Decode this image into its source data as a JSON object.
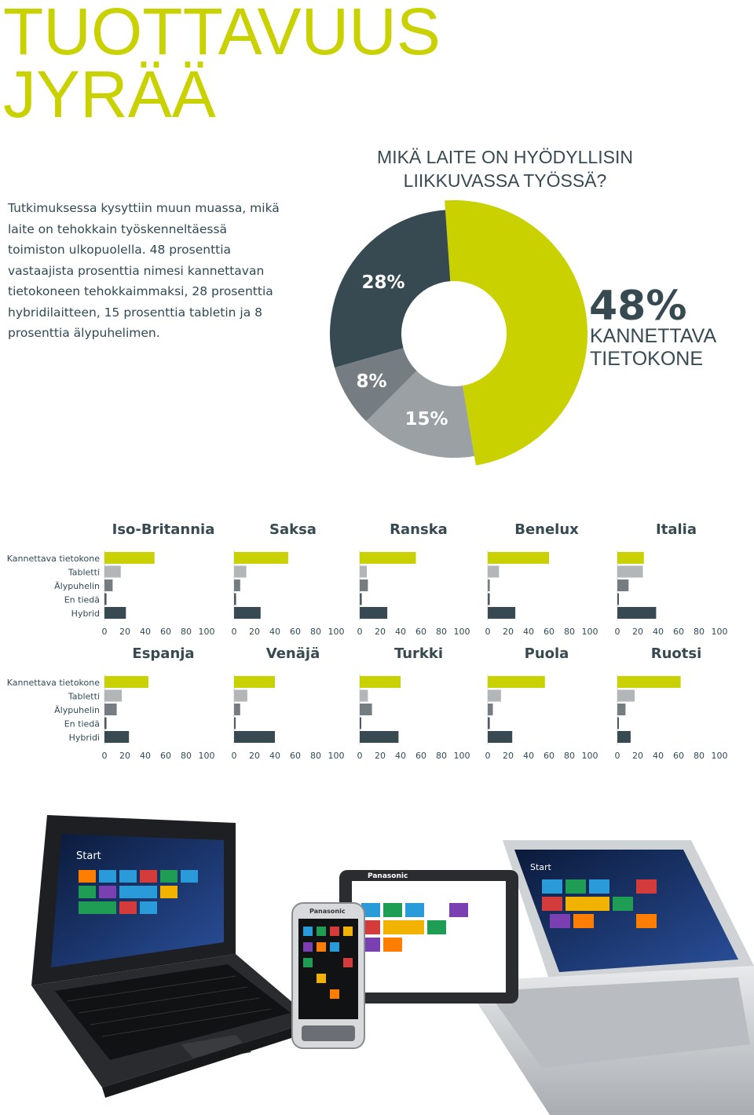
{
  "header": {
    "title_line1": "TUOTTAVUUS",
    "title_line2": "JYRÄÄ"
  },
  "intro_text": "Tutkimuksessa kysyttiin muun muassa, mikä laite on tehokkain työskenneltäessä toimiston ulkopuolella. 48 prosenttia vastaajista prosenttia nimesi kannettavan tietokoneen tehokkaimmaksi, 28 prosenttia hybridilaitteen, 15 prosenttia tabletin ja 8 prosenttia älypuhelimen.",
  "chart_data": [
    {
      "type": "pie",
      "title_line1": "MIKÄ LAITE ON HYÖDYLLISIN",
      "title_line2": "LIIKKUVASSA TYÖSSÄ?",
      "slices": [
        {
          "label": "KANNETTAVA TIETOKONE",
          "value": 48,
          "display": "48%",
          "color": "#c9d200"
        },
        {
          "label": "",
          "value": 15,
          "display": "15%",
          "color": "#9aa0a3"
        },
        {
          "label": "",
          "value": 8,
          "display": "8%",
          "color": "#767d82"
        },
        {
          "label": "",
          "value": 28,
          "display": "28%",
          "color": "#374a52"
        }
      ],
      "callout_value": "48%",
      "callout_label_line1": "KANNETTAVA",
      "callout_label_line2": "TIETOKONE"
    },
    {
      "type": "bar",
      "orientation": "horizontal",
      "xlim": [
        0,
        100
      ],
      "xticks": [
        "0",
        "20",
        "40",
        "60",
        "80",
        "100"
      ],
      "series_colors": [
        "#c9d200",
        "#b3b6b8",
        "#767d82",
        "#4f5a60",
        "#374a52"
      ],
      "rows": [
        {
          "categories": [
            "Kannettava tietokone",
            "Tabletti",
            "Älypuhelin",
            "En tiedä",
            "Hybrid"
          ],
          "panels": [
            {
              "name": "Iso-Britannia",
              "values": [
                49,
                16,
                8,
                2,
                21
              ]
            },
            {
              "name": "Saksa",
              "values": [
                53,
                12,
                6,
                2,
                26
              ]
            },
            {
              "name": "Ranska",
              "values": [
                55,
                7,
                8,
                2,
                27
              ]
            },
            {
              "name": "Benelux",
              "values": [
                60,
                11,
                2,
                2,
                27
              ]
            },
            {
              "name": "Italia",
              "values": [
                26,
                25,
                11,
                1,
                38
              ]
            }
          ]
        },
        {
          "categories": [
            "Kannettava tietokone",
            "Tabletti",
            "Älypuhelin",
            "En tiedä",
            "Hybridi"
          ],
          "panels": [
            {
              "name": "Espanja",
              "values": [
                43,
                17,
                12,
                2,
                24
              ]
            },
            {
              "name": "Venäjä",
              "values": [
                40,
                13,
                6,
                1,
                40
              ]
            },
            {
              "name": "Turkki",
              "values": [
                40,
                8,
                12,
                1,
                38
              ]
            },
            {
              "name": "Puola",
              "values": [
                56,
                13,
                5,
                2,
                24
              ]
            },
            {
              "name": "Ruotsi",
              "values": [
                62,
                17,
                8,
                1,
                13
              ]
            }
          ]
        }
      ]
    }
  ],
  "photo": {
    "device_brand": "Panasonic",
    "start_label": "Start",
    "icons": [
      "rugged-laptop-icon",
      "rugged-smartphone-icon",
      "rugged-tablet-icon",
      "convertible-laptop-icon"
    ]
  }
}
